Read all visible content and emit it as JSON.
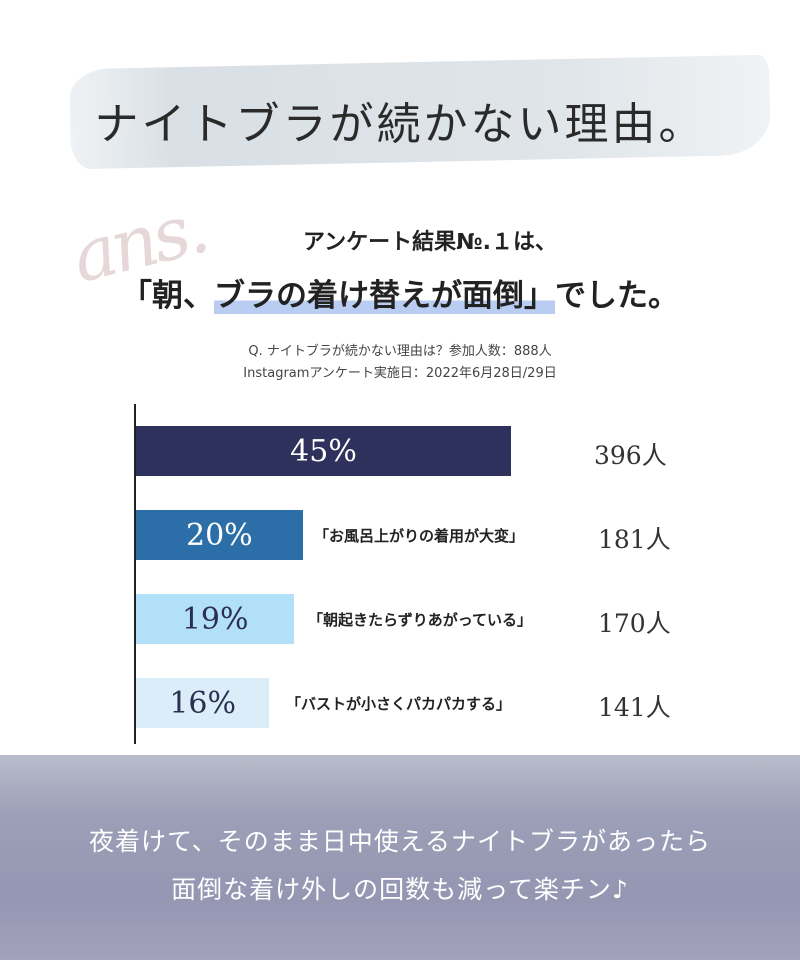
{
  "header": {
    "title": "ナイトブラが続かない理由。",
    "ans_script": "ans.",
    "subtitle": "アンケート結果№.１は、",
    "headline_pre": "「朝、",
    "headline_hl": "ブラの着け替えが面倒」",
    "headline_post": "でした。"
  },
  "survey": {
    "question": "Q. ナイトブラが続かない理由は？参加人数：888人",
    "date": "Instagramアンケート実施日：2022年6月28日/29日"
  },
  "chart_data": {
    "type": "bar",
    "orientation": "horizontal",
    "categories": [
      "",
      "「お風呂上がりの着用が大変」",
      "「朝起きたらずりあがっている」",
      "「バストが小さくパカパカする」"
    ],
    "values": [
      45,
      20,
      19,
      16
    ],
    "value_labels": [
      "45%",
      "20%",
      "19%",
      "16%"
    ],
    "counts": [
      "396人",
      "181人",
      "170人",
      "141人"
    ],
    "colors": [
      "#2e315c",
      "#2c6fa8",
      "#b2e0f8",
      "#dcedfa"
    ],
    "label_colors": [
      "#ffffff",
      "#ffffff",
      "#2a2f4f",
      "#2a2f4f"
    ],
    "xlim": [
      0,
      50
    ]
  },
  "footer": {
    "line1": "夜着けて、そのまま日中使えるナイトブラがあったら",
    "line2": "面倒な着け外しの回数も減って楽チン♪"
  }
}
